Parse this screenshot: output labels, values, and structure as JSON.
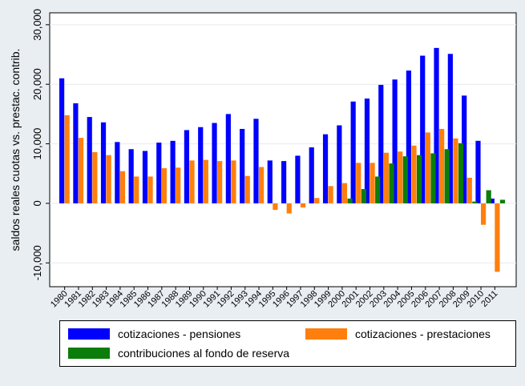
{
  "chart_data": {
    "type": "bar",
    "ylabel": "saldos reales cuotas vs. prestac. contrib.",
    "xlabel": "",
    "title": "",
    "ylim": [
      -14000,
      32000
    ],
    "yticks": [
      -10000,
      0,
      10000,
      20000,
      30000
    ],
    "ytick_labels": [
      "-10,000",
      "0",
      "10,000",
      "20,000",
      "30,000"
    ],
    "grid": true,
    "legend_position": "bottom",
    "categories": [
      "1980",
      "1981",
      "1982",
      "1983",
      "1984",
      "1985",
      "1986",
      "1987",
      "1988",
      "1989",
      "1990",
      "1991",
      "1992",
      "1993",
      "1994",
      "1995",
      "1996",
      "1997",
      "1998",
      "1999",
      "2000",
      "2001",
      "2002",
      "2003",
      "2004",
      "2005",
      "2006",
      "2007",
      "2008",
      "2009",
      "2010",
      "2011"
    ],
    "series": [
      {
        "name": "cotizaciones - pensiones",
        "color": "#0000ff",
        "values": [
          21000,
          16800,
          14500,
          13600,
          10300,
          9100,
          8800,
          10200,
          10500,
          12300,
          12800,
          13500,
          15000,
          12500,
          14200,
          7200,
          7100,
          8000,
          9400,
          11600,
          13100,
          17100,
          17600,
          19900,
          20800,
          22300,
          24800,
          26100,
          25100,
          18100,
          10500,
          800
        ]
      },
      {
        "name": "cotizaciones - prestaciones",
        "color": "#ff7f0e",
        "values": [
          14800,
          11000,
          8600,
          8100,
          5400,
          4500,
          4500,
          5900,
          6000,
          7200,
          7300,
          7100,
          7200,
          4600,
          6100,
          -1100,
          -1700,
          -700,
          900,
          2900,
          3400,
          6800,
          6800,
          8500,
          8700,
          9700,
          11900,
          12500,
          10900,
          4300,
          -3600,
          -11500
        ]
      },
      {
        "name": "contribuciones al fondo de reserva",
        "color": "#0a7d0a",
        "values": [
          0,
          0,
          0,
          0,
          0,
          0,
          0,
          0,
          0,
          0,
          0,
          0,
          0,
          0,
          0,
          0,
          0,
          0,
          0,
          0,
          800,
          2400,
          4500,
          6700,
          7900,
          8100,
          8400,
          9100,
          10100,
          300,
          2200,
          600
        ]
      }
    ]
  }
}
